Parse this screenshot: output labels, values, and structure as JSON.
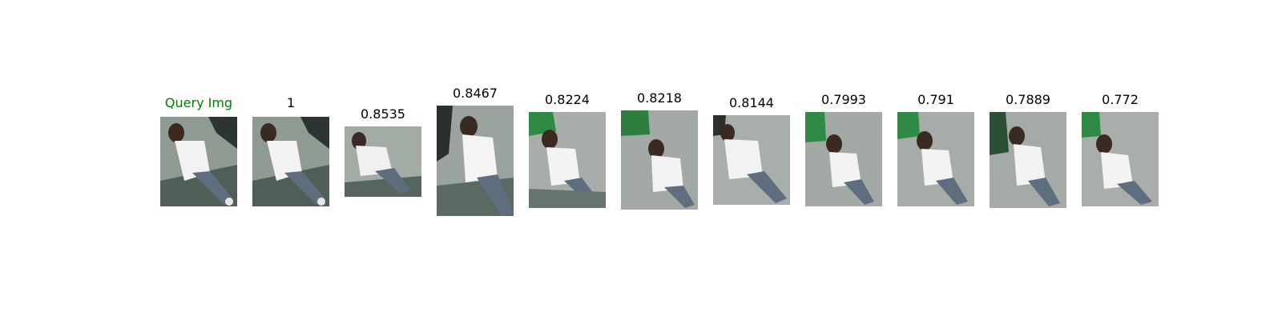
{
  "query": {
    "caption": "Query Img",
    "caption_color": "#008000"
  },
  "results": [
    {
      "score": "1"
    },
    {
      "score": "0.8535"
    },
    {
      "score": "0.8467"
    },
    {
      "score": "0.8224"
    },
    {
      "score": "0.8218"
    },
    {
      "score": "0.8144"
    },
    {
      "score": "0.7993"
    },
    {
      "score": "0.791"
    },
    {
      "score": "0.7889"
    },
    {
      "score": "0.772"
    }
  ]
}
